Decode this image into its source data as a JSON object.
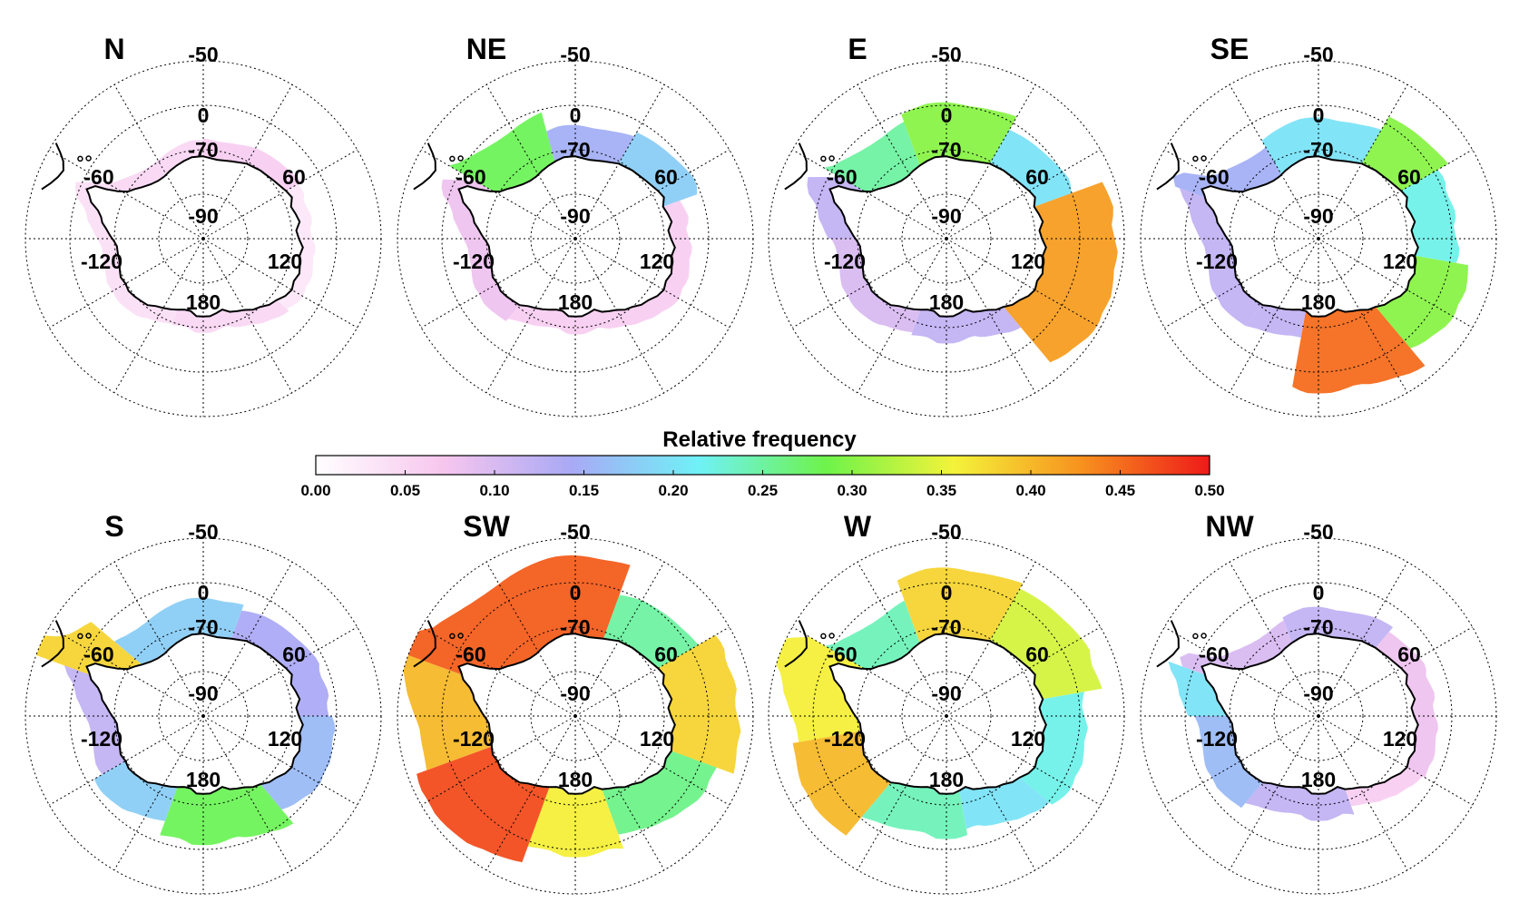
{
  "figure": {
    "colorbar": {
      "title": "Relative frequency",
      "ticks": [
        "0.00",
        "0.05",
        "0.10",
        "0.15",
        "0.20",
        "0.25",
        "0.30",
        "0.35",
        "0.40",
        "0.45",
        "0.50"
      ],
      "range": [
        0,
        0.5
      ],
      "stops": [
        "#ffffff",
        "#f7c6ee",
        "#a9a9f5",
        "#6ff1f7",
        "#6ef34a",
        "#f4f33a",
        "#f7911e",
        "#ee1a1a"
      ]
    },
    "grid_labels": {
      "lat_outer": "-50",
      "lat_inner": "-70",
      "pole": "-90",
      "lon_0": "0",
      "lon_60": "60",
      "lon_120": "120",
      "lon_180": "180",
      "lon_m60": "-60",
      "lon_m120": "-120"
    },
    "panels": [
      {
        "title": "N",
        "sectors": [
          {
            "from": 300,
            "to": 360,
            "f": 0.05
          },
          {
            "from": 0,
            "to": 60,
            "f": 0.06
          },
          {
            "from": 60,
            "to": 130,
            "f": 0.03
          },
          {
            "from": 130,
            "to": 200,
            "f": 0.05
          },
          {
            "from": 200,
            "to": 300,
            "f": 0.04
          }
        ]
      },
      {
        "title": "NE",
        "sectors": [
          {
            "from": 300,
            "to": 345,
            "f": 0.28
          },
          {
            "from": 345,
            "to": 30,
            "f": 0.15
          },
          {
            "from": 30,
            "to": 70,
            "f": 0.18
          },
          {
            "from": 70,
            "to": 130,
            "f": 0.06
          },
          {
            "from": 130,
            "to": 220,
            "f": 0.06
          },
          {
            "from": 220,
            "to": 300,
            "f": 0.08
          }
        ]
      },
      {
        "title": "E",
        "sectors": [
          {
            "from": 300,
            "to": 340,
            "f": 0.25
          },
          {
            "from": 340,
            "to": 30,
            "f": 0.3
          },
          {
            "from": 30,
            "to": 70,
            "f": 0.2
          },
          {
            "from": 70,
            "to": 140,
            "f": 0.42
          },
          {
            "from": 140,
            "to": 200,
            "f": 0.12
          },
          {
            "from": 200,
            "to": 270,
            "f": 0.1
          },
          {
            "from": 270,
            "to": 300,
            "f": 0.12
          }
        ]
      },
      {
        "title": "SE",
        "sectors": [
          {
            "from": 290,
            "to": 330,
            "f": 0.15
          },
          {
            "from": 330,
            "to": 30,
            "f": 0.2
          },
          {
            "from": 30,
            "to": 60,
            "f": 0.3
          },
          {
            "from": 60,
            "to": 100,
            "f": 0.22
          },
          {
            "from": 100,
            "to": 140,
            "f": 0.3
          },
          {
            "from": 140,
            "to": 190,
            "f": 0.45
          },
          {
            "from": 190,
            "to": 220,
            "f": 0.12
          },
          {
            "from": 220,
            "to": 290,
            "f": 0.12
          }
        ]
      },
      {
        "title": "S",
        "sectors": [
          {
            "from": 290,
            "to": 310,
            "f": 0.38
          },
          {
            "from": 310,
            "to": 20,
            "f": 0.18
          },
          {
            "from": 20,
            "to": 90,
            "f": 0.14
          },
          {
            "from": 90,
            "to": 140,
            "f": 0.16
          },
          {
            "from": 140,
            "to": 200,
            "f": 0.28
          },
          {
            "from": 200,
            "to": 240,
            "f": 0.18
          },
          {
            "from": 240,
            "to": 290,
            "f": 0.12
          }
        ]
      },
      {
        "title": "SW",
        "sectors": [
          {
            "from": 290,
            "to": 20,
            "f": 0.46
          },
          {
            "from": 20,
            "to": 60,
            "f": 0.25
          },
          {
            "from": 60,
            "to": 110,
            "f": 0.38
          },
          {
            "from": 110,
            "to": 160,
            "f": 0.26
          },
          {
            "from": 160,
            "to": 200,
            "f": 0.36
          },
          {
            "from": 200,
            "to": 250,
            "f": 0.47
          },
          {
            "from": 250,
            "to": 290,
            "f": 0.4
          }
        ]
      },
      {
        "title": "W",
        "sectors": [
          {
            "from": 300,
            "to": 340,
            "f": 0.24
          },
          {
            "from": 340,
            "to": 30,
            "f": 0.38
          },
          {
            "from": 30,
            "to": 80,
            "f": 0.34
          },
          {
            "from": 80,
            "to": 130,
            "f": 0.22
          },
          {
            "from": 130,
            "to": 170,
            "f": 0.2
          },
          {
            "from": 170,
            "to": 220,
            "f": 0.24
          },
          {
            "from": 220,
            "to": 260,
            "f": 0.4
          },
          {
            "from": 260,
            "to": 300,
            "f": 0.36
          }
        ]
      },
      {
        "title": "NW",
        "sectors": [
          {
            "from": 290,
            "to": 340,
            "f": 0.1
          },
          {
            "from": 340,
            "to": 40,
            "f": 0.12
          },
          {
            "from": 40,
            "to": 120,
            "f": 0.08
          },
          {
            "from": 120,
            "to": 160,
            "f": 0.06
          },
          {
            "from": 160,
            "to": 220,
            "f": 0.12
          },
          {
            "from": 220,
            "to": 270,
            "f": 0.16
          },
          {
            "from": 270,
            "to": 290,
            "f": 0.2
          }
        ]
      }
    ]
  }
}
